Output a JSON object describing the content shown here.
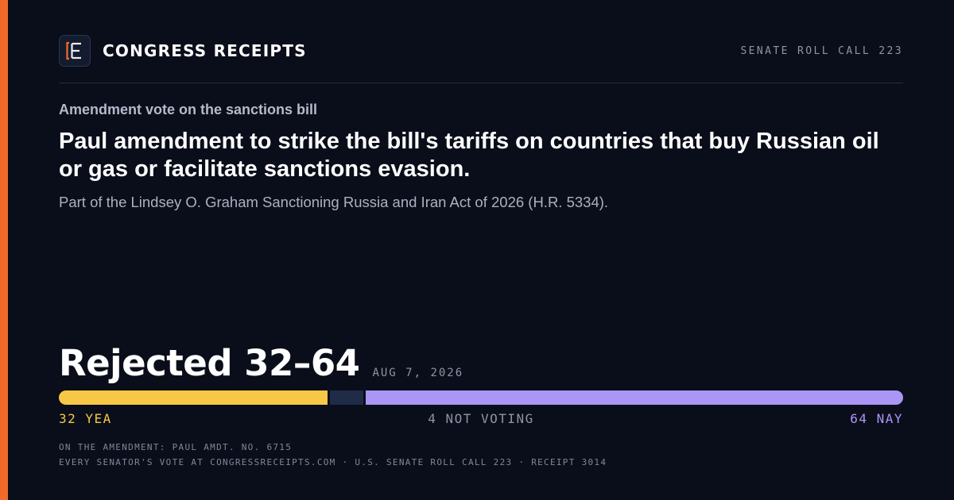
{
  "brand": {
    "name": "CONGRESS RECEIPTS",
    "logo_icon": "bracket-e-icon",
    "accent_color": "#f26a2b"
  },
  "header": {
    "roll_call": "SENATE ROLL CALL 223"
  },
  "vote": {
    "kicker": "Amendment vote on the sanctions bill",
    "headline": "Paul amendment to strike the bill's tariffs on countries that buy Russian oil or gas or facilitate sanctions evasion.",
    "subline": "Part of the Lindsey O. Graham Sanctioning Russia and Iran Act of 2026 (H.R. 5334).",
    "result": "Rejected 32–64",
    "date": "AUG 7, 2026"
  },
  "tally": {
    "yea": 32,
    "not_voting": 4,
    "nay": 64,
    "yea_label": "32 YEA",
    "not_voting_label": "4 NOT VOTING",
    "nay_label": "64 NAY",
    "colors": {
      "yea": "#f7c846",
      "not_voting": "#1f2b47",
      "nay": "#a996f5"
    }
  },
  "footer": {
    "line1": "ON THE AMENDMENT: PAUL AMDT. NO. 6715",
    "line2": "EVERY SENATOR'S VOTE AT CONGRESSRECEIPTS.COM · U.S. SENATE ROLL CALL 223 · RECEIPT 3014"
  }
}
